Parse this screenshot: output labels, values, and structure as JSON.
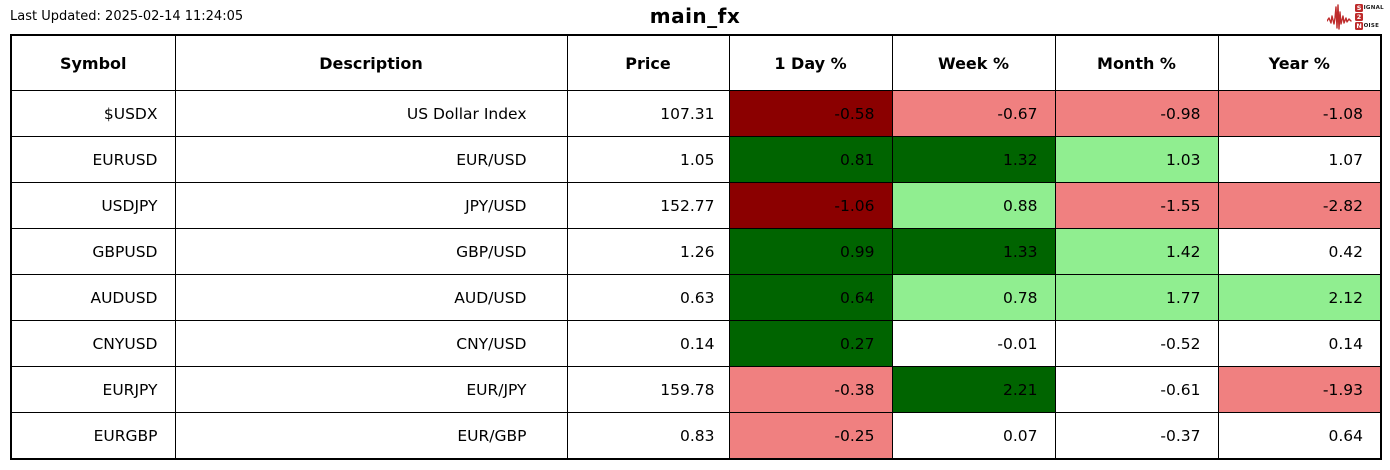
{
  "header": {
    "last_updated": "Last Updated: 2025-02-14 11:24:05",
    "title": "main_fx",
    "logo": {
      "line1_initial": "S",
      "line1_rest": "IGNAL",
      "line2_initial": "2",
      "line2_rest": "",
      "line3_initial": "N",
      "line3_rest": "OISE"
    }
  },
  "colors": {
    "strong_negative": "#8B0000",
    "negative": "#F08080",
    "neutral": "#FFFFFF",
    "positive": "#90EE90",
    "strong_positive": "#006400",
    "border": "#000000",
    "logo_red": "#BE2B2B"
  },
  "table": {
    "columns": [
      "Symbol",
      "Description",
      "Price",
      "1 Day %",
      "Week %",
      "Month %",
      "Year %"
    ],
    "rows": [
      {
        "symbol": "$USDX",
        "description": "US Dollar Index",
        "price": "107.31",
        "changes": [
          {
            "value": "-0.58",
            "tone": "strong_negative"
          },
          {
            "value": "-0.67",
            "tone": "negative"
          },
          {
            "value": "-0.98",
            "tone": "negative"
          },
          {
            "value": "-1.08",
            "tone": "negative"
          }
        ]
      },
      {
        "symbol": "EURUSD",
        "description": "EUR/USD",
        "price": "1.05",
        "changes": [
          {
            "value": "0.81",
            "tone": "strong_positive"
          },
          {
            "value": "1.32",
            "tone": "strong_positive"
          },
          {
            "value": "1.03",
            "tone": "positive"
          },
          {
            "value": "1.07",
            "tone": "neutral"
          }
        ]
      },
      {
        "symbol": "USDJPY",
        "description": "JPY/USD",
        "price": "152.77",
        "changes": [
          {
            "value": "-1.06",
            "tone": "strong_negative"
          },
          {
            "value": "0.88",
            "tone": "positive"
          },
          {
            "value": "-1.55",
            "tone": "negative"
          },
          {
            "value": "-2.82",
            "tone": "negative"
          }
        ]
      },
      {
        "symbol": "GBPUSD",
        "description": "GBP/USD",
        "price": "1.26",
        "changes": [
          {
            "value": "0.99",
            "tone": "strong_positive"
          },
          {
            "value": "1.33",
            "tone": "strong_positive"
          },
          {
            "value": "1.42",
            "tone": "positive"
          },
          {
            "value": "0.42",
            "tone": "neutral"
          }
        ]
      },
      {
        "symbol": "AUDUSD",
        "description": "AUD/USD",
        "price": "0.63",
        "changes": [
          {
            "value": "0.64",
            "tone": "strong_positive"
          },
          {
            "value": "0.78",
            "tone": "positive"
          },
          {
            "value": "1.77",
            "tone": "positive"
          },
          {
            "value": "2.12",
            "tone": "positive"
          }
        ]
      },
      {
        "symbol": "CNYUSD",
        "description": "CNY/USD",
        "price": "0.14",
        "changes": [
          {
            "value": "0.27",
            "tone": "strong_positive"
          },
          {
            "value": "-0.01",
            "tone": "neutral"
          },
          {
            "value": "-0.52",
            "tone": "neutral"
          },
          {
            "value": "0.14",
            "tone": "neutral"
          }
        ]
      },
      {
        "symbol": "EURJPY",
        "description": "EUR/JPY",
        "price": "159.78",
        "changes": [
          {
            "value": "-0.38",
            "tone": "negative"
          },
          {
            "value": "2.21",
            "tone": "strong_positive"
          },
          {
            "value": "-0.61",
            "tone": "neutral"
          },
          {
            "value": "-1.93",
            "tone": "negative"
          }
        ]
      },
      {
        "symbol": "EURGBP",
        "description": "EUR/GBP",
        "price": "0.83",
        "changes": [
          {
            "value": "-0.25",
            "tone": "negative"
          },
          {
            "value": "0.07",
            "tone": "neutral"
          },
          {
            "value": "-0.37",
            "tone": "neutral"
          },
          {
            "value": "0.64",
            "tone": "neutral"
          }
        ]
      }
    ]
  },
  "chart_data": {
    "type": "table",
    "title": "main_fx",
    "columns": [
      "Symbol",
      "Description",
      "Price",
      "1 Day %",
      "Week %",
      "Month %",
      "Year %"
    ],
    "rows": [
      [
        "$USDX",
        "US Dollar Index",
        107.31,
        -0.58,
        -0.67,
        -0.98,
        -1.08
      ],
      [
        "EURUSD",
        "EUR/USD",
        1.05,
        0.81,
        1.32,
        1.03,
        1.07
      ],
      [
        "USDJPY",
        "JPY/USD",
        152.77,
        -1.06,
        0.88,
        -1.55,
        -2.82
      ],
      [
        "GBPUSD",
        "GBP/USD",
        1.26,
        0.99,
        1.33,
        1.42,
        0.42
      ],
      [
        "AUDUSD",
        "AUD/USD",
        0.63,
        0.64,
        0.78,
        1.77,
        2.12
      ],
      [
        "CNYUSD",
        "CNY/USD",
        0.14,
        0.27,
        -0.01,
        -0.52,
        0.14
      ],
      [
        "EURJPY",
        "EUR/JPY",
        159.78,
        -0.38,
        2.21,
        -0.61,
        -1.93
      ],
      [
        "EURGBP",
        "EUR/GBP",
        0.83,
        -0.25,
        0.07,
        -0.37,
        0.64
      ]
    ],
    "legend": "cell shading: dark green = strong gain, light green = gain, white = flat, light red = loss, dark red = strong loss"
  }
}
